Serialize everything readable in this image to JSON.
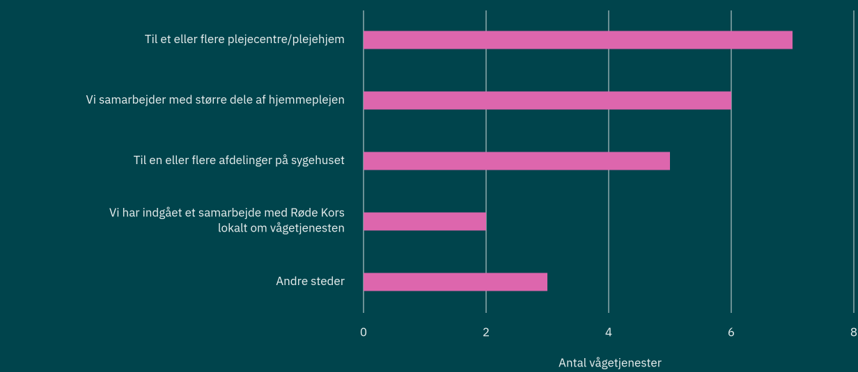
{
  "chart_data": {
    "type": "bar",
    "orientation": "horizontal",
    "categories": [
      "Til et eller flere plejecentre/plejehjem",
      "Vi samarbejder med større dele af hjemmeplejen",
      "Til en eller flere afdelinger på sygehuset",
      "Vi har indgået et samarbejde med Røde Kors\nlokalt om vågetjenesten",
      "Andre steder"
    ],
    "values": [
      7,
      6,
      5,
      2,
      3
    ],
    "color": "#dd66ad",
    "xlabel": "Antal vågetjenester",
    "xlim": [
      0,
      8
    ],
    "xticks": [
      0,
      2,
      4,
      6,
      8
    ],
    "grid": true
  }
}
